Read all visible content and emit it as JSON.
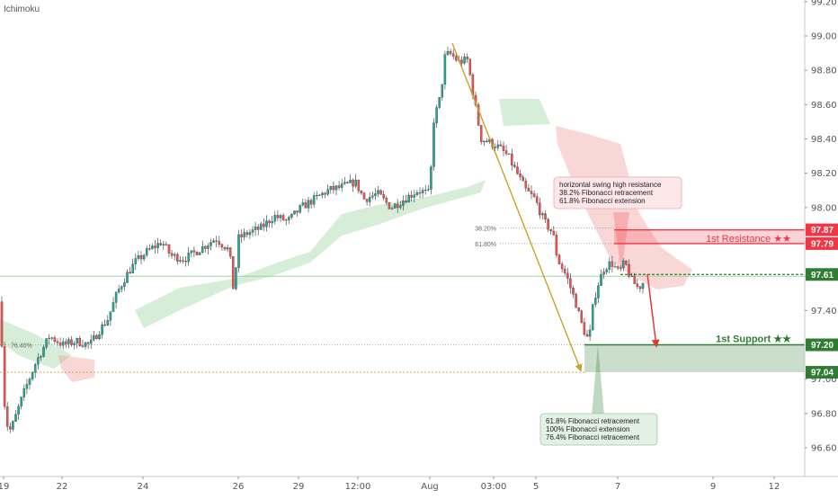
{
  "indicator_label": "Ichimoku",
  "colors": {
    "up": "#26a69a",
    "down": "#ef5350",
    "resistance": "#f23645",
    "support": "#2e7d32",
    "arrow_down": "#e53935",
    "fib_arrow": "#c9a227",
    "cloud_green": "#a5d6a7",
    "cloud_red": "#ef9a9a"
  },
  "chart_data": {
    "type": "candlestick",
    "ylim": [
      96.44,
      99.2
    ],
    "y_ticks": [
      "99.20",
      "99.00",
      "98.80",
      "98.60",
      "98.40",
      "98.20",
      "98.00",
      "97.80",
      "97.60",
      "97.40",
      "97.00",
      "96.80",
      "96.60"
    ],
    "x_ticks": [
      "19",
      "22",
      "24",
      "26",
      "29",
      "12:00",
      "Aug",
      "03:00",
      "5",
      "7",
      "9",
      "12"
    ],
    "price_path": [
      [
        0,
        97.45
      ],
      [
        6,
        96.75
      ],
      [
        12,
        96.7
      ],
      [
        25,
        96.9
      ],
      [
        40,
        97.1
      ],
      [
        55,
        97.25
      ],
      [
        70,
        97.2
      ],
      [
        85,
        97.22
      ],
      [
        100,
        97.2
      ],
      [
        110,
        97.28
      ],
      [
        120,
        97.35
      ],
      [
        130,
        97.5
      ],
      [
        140,
        97.6
      ],
      [
        150,
        97.68
      ],
      [
        165,
        97.75
      ],
      [
        180,
        97.8
      ],
      [
        190,
        97.72
      ],
      [
        205,
        97.7
      ],
      [
        220,
        97.75
      ],
      [
        240,
        97.82
      ],
      [
        255,
        97.75
      ],
      [
        260,
        97.5
      ],
      [
        265,
        97.82
      ],
      [
        275,
        97.85
      ],
      [
        290,
        97.88
      ],
      [
        305,
        97.95
      ],
      [
        320,
        97.92
      ],
      [
        335,
        98.0
      ],
      [
        350,
        98.05
      ],
      [
        365,
        98.1
      ],
      [
        380,
        98.12
      ],
      [
        395,
        98.15
      ],
      [
        405,
        98.05
      ],
      [
        420,
        98.08
      ],
      [
        435,
        98.0
      ],
      [
        450,
        98.05
      ],
      [
        465,
        98.1
      ],
      [
        478,
        98.08
      ],
      [
        482,
        98.5
      ],
      [
        490,
        98.65
      ],
      [
        495,
        98.88
      ],
      [
        500,
        98.9
      ],
      [
        510,
        98.85
      ],
      [
        520,
        98.86
      ],
      [
        525,
        98.7
      ],
      [
        535,
        98.4
      ],
      [
        545,
        98.38
      ],
      [
        555,
        98.35
      ],
      [
        565,
        98.3
      ],
      [
        575,
        98.2
      ],
      [
        585,
        98.1
      ],
      [
        595,
        98.05
      ],
      [
        605,
        97.92
      ],
      [
        615,
        97.85
      ],
      [
        620,
        97.7
      ],
      [
        630,
        97.6
      ],
      [
        640,
        97.45
      ],
      [
        648,
        97.3
      ],
      [
        655,
        97.22
      ],
      [
        660,
        97.45
      ],
      [
        665,
        97.55
      ],
      [
        672,
        97.65
      ],
      [
        680,
        97.68
      ],
      [
        688,
        97.62
      ],
      [
        695,
        97.68
      ],
      [
        702,
        97.58
      ],
      [
        710,
        97.53
      ],
      [
        718,
        97.58
      ]
    ],
    "levels": [
      {
        "label": "97.87",
        "value": 97.87,
        "kind": "resistance"
      },
      {
        "label": "97.79",
        "value": 97.79,
        "kind": "resistance"
      },
      {
        "label": "97.61",
        "value": 97.61,
        "kind": "support"
      },
      {
        "label": "97.20",
        "value": 97.2,
        "kind": "support"
      },
      {
        "label": "97.04",
        "value": 97.04,
        "kind": "support"
      }
    ],
    "zones": [
      {
        "name": "1st Resistance ★★",
        "from": 97.79,
        "to": 97.87
      },
      {
        "name": "1st Support ★★",
        "from": 97.04,
        "to": 97.2
      }
    ],
    "fib_labels": [
      "38.20%",
      "61.80%",
      "76.40%"
    ],
    "annotations": {
      "resistance_note": [
        "horizontal swing high resistance",
        "38.2% Fibonacci retracement",
        "61.8% Fibonacci extension"
      ],
      "support_note": [
        "61.8% Fibonacci retracement",
        "100% Fibonacci extension",
        "76.4% Fibonacci retracement"
      ]
    }
  }
}
